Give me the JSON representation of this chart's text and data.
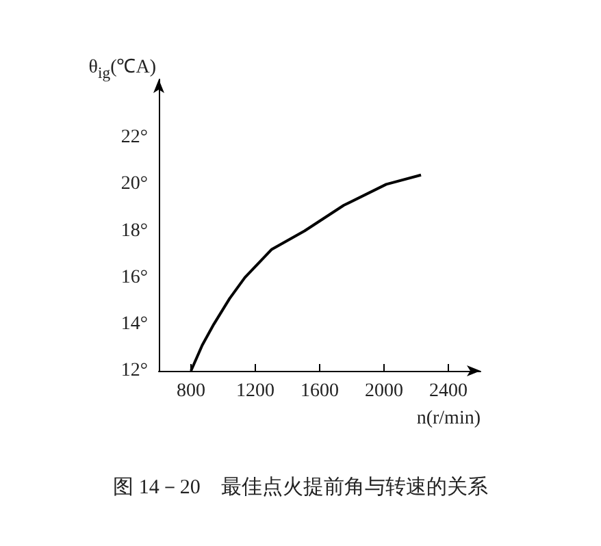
{
  "chart_data": {
    "type": "line",
    "title": "图 14－20　最佳点火提前角与转速的关系",
    "xlabel": "n(r/min)",
    "ylabel": "θ$_{ig}$(℃A)",
    "x": [
      800,
      870,
      942,
      1040,
      1135,
      1300,
      1506,
      1750,
      2014,
      2230
    ],
    "series": [
      {
        "color": "#000000",
        "values": [
          12,
          13.1,
          14,
          15.1,
          16,
          17.2,
          18,
          19.1,
          20,
          20.4
        ]
      }
    ],
    "xlim": [
      600,
      2600
    ],
    "xticks": [
      800,
      1200,
      1600,
      2000,
      2400
    ],
    "ylim": [
      12,
      24.5
    ],
    "yticks": [
      {
        "value": 12,
        "label": "12°"
      },
      {
        "value": 14,
        "label": "14°"
      },
      {
        "value": 16,
        "label": "16°"
      },
      {
        "value": 18,
        "label": "18°"
      },
      {
        "value": 20,
        "label": "20°"
      },
      {
        "value": 22,
        "label": "22°"
      }
    ],
    "grid": false,
    "marker": "none",
    "line_style": "solid"
  }
}
